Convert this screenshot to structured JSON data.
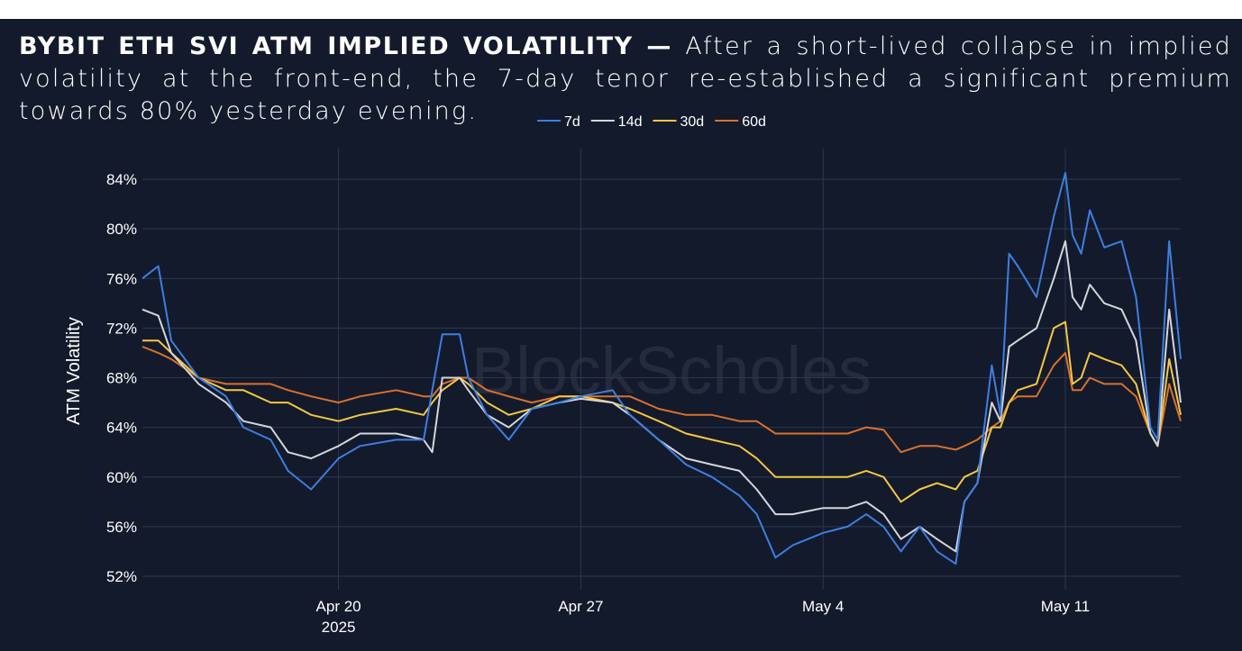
{
  "title": {
    "lead": "BYBIT ETH SVI ATM IMPLIED VOLATILITY —",
    "body": "After a short-lived collapse in implied volatility  at the front-end, the 7-day tenor re-established a significant premium towards 80% yesterday evening."
  },
  "watermark": "BlockScholes",
  "chart_data": {
    "type": "line",
    "title": "BYBIT ETH SVI ATM IMPLIED VOLATILITY",
    "xlabel": "",
    "ylabel": "ATM Volatility",
    "xlim": [
      "2025-04-14T08:00",
      "2025-05-14T08:00"
    ],
    "ylim": [
      51,
      85.5
    ],
    "grid": true,
    "legend_position": "top",
    "x_ticks": [
      {
        "date": "2025-04-20T00:00",
        "label": "Apr 20",
        "sublabel": "2025"
      },
      {
        "date": "2025-04-27T00:00",
        "label": "Apr 27"
      },
      {
        "date": "2025-05-04T00:00",
        "label": "May 4"
      },
      {
        "date": "2025-05-11T00:00",
        "label": "May 11"
      }
    ],
    "y_ticks": [
      52,
      56,
      60,
      64,
      68,
      72,
      76,
      80,
      84
    ],
    "y_tick_labels": [
      "52%",
      "56%",
      "60%",
      "64%",
      "68%",
      "72%",
      "76%",
      "80%",
      "84%"
    ],
    "x": [
      "2025-04-14T08:00",
      "2025-04-14T19:00",
      "2025-04-15T04:00",
      "2025-04-15T23:00",
      "2025-04-16T18:00",
      "2025-04-17T06:00",
      "2025-04-18T01:00",
      "2025-04-18T13:00",
      "2025-04-19T05:00",
      "2025-04-20T00:00",
      "2025-04-20T15:00",
      "2025-04-21T16:00",
      "2025-04-22T11:00",
      "2025-04-22T17:00",
      "2025-04-23T00:00",
      "2025-04-23T12:00",
      "2025-04-23T18:00",
      "2025-04-24T07:00",
      "2025-04-24T22:00",
      "2025-04-25T14:00",
      "2025-04-26T09:00",
      "2025-04-27T00:00",
      "2025-04-27T22:00",
      "2025-04-28T10:00",
      "2025-04-29T06:00",
      "2025-04-30T01:00",
      "2025-04-30T19:00",
      "2025-05-01T14:00",
      "2025-05-02T02:00",
      "2025-05-02T15:00",
      "2025-05-03T03:00",
      "2025-05-04T00:00",
      "2025-05-04T17:00",
      "2025-05-05T06:00",
      "2025-05-05T18:00",
      "2025-05-06T06:00",
      "2025-05-06T19:00",
      "2025-05-07T07:00",
      "2025-05-07T20:00",
      "2025-05-08T02:00",
      "2025-05-08T11:00",
      "2025-05-08T21:00",
      "2025-05-09T03:00",
      "2025-05-09T09:00",
      "2025-05-09T15:00",
      "2025-05-10T04:00",
      "2025-05-10T16:00",
      "2025-05-11T00:00",
      "2025-05-11T05:00",
      "2025-05-11T11:00",
      "2025-05-11T17:00",
      "2025-05-12T03:00",
      "2025-05-12T15:00",
      "2025-05-13T01:00",
      "2025-05-13T11:00",
      "2025-05-13T16:00",
      "2025-05-14T00:00",
      "2025-05-14T08:00"
    ],
    "series": [
      {
        "name": "7d",
        "color": "#3d7fe0",
        "values": [
          76,
          77,
          71,
          68,
          66.5,
          64,
          63,
          60.5,
          59,
          61.5,
          62.5,
          63,
          63,
          67,
          71.5,
          71.5,
          68,
          65,
          63,
          65.5,
          66,
          66.5,
          67,
          65,
          63,
          61,
          60,
          58.5,
          57,
          53.5,
          54.5,
          55.5,
          56,
          57,
          56,
          54,
          56,
          54,
          53,
          58,
          59.5,
          69,
          65,
          78,
          77,
          74.5,
          81,
          84.5,
          79.5,
          78,
          81.5,
          78.5,
          79,
          74.5,
          64,
          63,
          79,
          69.5
        ]
      },
      {
        "name": "14d",
        "color": "#d4d6da",
        "values": [
          73.5,
          73,
          70,
          67.5,
          66,
          64.5,
          64,
          62,
          61.5,
          62.5,
          63.5,
          63.5,
          63,
          62,
          68,
          68,
          67,
          65,
          64,
          65.5,
          66,
          66.3,
          66,
          65,
          63,
          61.5,
          61,
          60.5,
          59,
          57,
          57,
          57.5,
          57.5,
          58,
          57,
          55,
          56,
          55,
          54,
          58,
          59.5,
          66,
          64.5,
          70.5,
          71,
          72,
          76,
          79,
          74.5,
          73.5,
          75.5,
          74,
          73.5,
          71,
          63.5,
          62.5,
          73.5,
          66
        ]
      },
      {
        "name": "30d",
        "color": "#f5c842",
        "values": [
          71,
          71,
          70,
          68,
          67,
          67,
          66,
          66,
          65,
          64.5,
          65,
          65.5,
          65,
          66,
          67,
          68,
          67.5,
          66,
          65,
          65.5,
          66.5,
          66.5,
          66,
          65.5,
          64.5,
          63.5,
          63,
          62.5,
          61.5,
          60,
          60,
          60,
          60,
          60.5,
          60,
          58,
          59,
          59.5,
          59,
          60,
          60.5,
          64,
          64,
          66,
          67,
          67.5,
          72,
          72.5,
          67.5,
          68,
          70,
          69.5,
          69,
          67.5,
          63.5,
          62.5,
          69.5,
          65
        ]
      },
      {
        "name": "60d",
        "color": "#d9712c",
        "values": [
          70.5,
          70,
          69.5,
          68,
          67.5,
          67.5,
          67.5,
          67,
          66.5,
          66,
          66.5,
          67,
          66.5,
          66.5,
          67.5,
          68,
          68,
          67,
          66.5,
          66,
          66.5,
          66.5,
          66.5,
          66.5,
          65.5,
          65,
          65,
          64.5,
          64.5,
          63.5,
          63.5,
          63.5,
          63.5,
          64,
          63.8,
          62,
          62.5,
          62.5,
          62.2,
          62.5,
          63,
          64,
          64.5,
          66,
          66.5,
          66.5,
          69,
          70,
          67,
          67,
          68,
          67.5,
          67.5,
          66.5,
          63.5,
          62.5,
          67.5,
          64.5
        ]
      }
    ]
  }
}
